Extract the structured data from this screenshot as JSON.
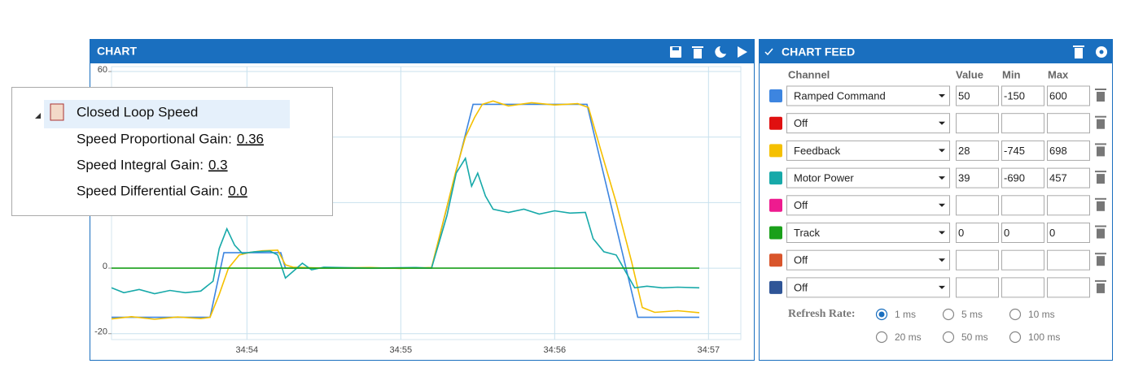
{
  "chart_panel": {
    "title": "CHART"
  },
  "chart_data": {
    "type": "line",
    "xlim": [
      2093.12,
      2097.21
    ],
    "ylim": [
      -21.8,
      61.5
    ],
    "xticks": [
      {
        "value": 2094,
        "label": "34:54"
      },
      {
        "value": 2095,
        "label": "34:55"
      },
      {
        "value": 2096,
        "label": "34:56"
      },
      {
        "value": 2097,
        "label": "34:57"
      }
    ],
    "yticks": [
      -20,
      0,
      60
    ],
    "ygrid": [
      -20,
      0,
      20,
      40,
      60
    ],
    "series": [
      {
        "name": "Ramped Command",
        "color": "#3d85e0",
        "x": [
          2093.12,
          2093.76,
          2093.85,
          2094.22,
          2094.25,
          2095.2,
          2095.47,
          2096.21,
          2096.54,
          2096.94
        ],
        "values": [
          -15,
          -15,
          4.7,
          4.7,
          0,
          0,
          50,
          50,
          -15,
          -15
        ]
      },
      {
        "name": "Feedback",
        "color": "#f5c000",
        "x": [
          2093.12,
          2093.25,
          2093.4,
          2093.55,
          2093.7,
          2093.76,
          2093.82,
          2093.88,
          2093.95,
          2094.02,
          2094.1,
          2094.2,
          2094.25,
          2094.3,
          2094.5,
          2094.8,
          2095.0,
          2095.2,
          2095.28,
          2095.36,
          2095.42,
          2095.48,
          2095.53,
          2095.6,
          2095.7,
          2095.85,
          2096.0,
          2096.15,
          2096.22,
          2096.3,
          2096.4,
          2096.5,
          2096.57,
          2096.65,
          2096.8,
          2096.94
        ],
        "values": [
          -15.5,
          -14.8,
          -15.6,
          -14.9,
          -15.4,
          -15,
          -8,
          0,
          4,
          4.8,
          5.3,
          5.5,
          1,
          0.3,
          0,
          0.2,
          -0.1,
          0.2,
          15,
          30,
          40,
          46,
          50,
          51,
          49.5,
          50.5,
          49.8,
          50.2,
          49,
          36,
          20,
          2,
          -12,
          -13.5,
          -13,
          -13.6
        ]
      },
      {
        "name": "Motor Power",
        "color": "#17a9a9",
        "x": [
          2093.12,
          2093.2,
          2093.3,
          2093.4,
          2093.5,
          2093.6,
          2093.7,
          2093.78,
          2093.82,
          2093.87,
          2093.92,
          2093.97,
          2094.05,
          2094.15,
          2094.2,
          2094.25,
          2094.3,
          2094.36,
          2094.42,
          2094.5,
          2094.8,
          2095.1,
          2095.2,
          2095.3,
          2095.36,
          2095.42,
          2095.46,
          2095.5,
          2095.55,
          2095.6,
          2095.7,
          2095.8,
          2095.9,
          2096.0,
          2096.1,
          2096.2,
          2096.25,
          2096.32,
          2096.4,
          2096.46,
          2096.52,
          2096.6,
          2096.7,
          2096.8,
          2096.94
        ],
        "values": [
          -6,
          -7.5,
          -6.5,
          -7.8,
          -6.8,
          -7.5,
          -7,
          -4,
          6,
          12,
          7,
          4.5,
          5,
          5.2,
          4,
          -3,
          -1,
          1.5,
          -0.5,
          0.3,
          0,
          0.2,
          0,
          16,
          29,
          33.5,
          25,
          29,
          22,
          18,
          17,
          18,
          16.5,
          17.5,
          16.8,
          17,
          9,
          5,
          4,
          -1,
          -6,
          -5.5,
          -6,
          -5.8,
          -6
        ]
      },
      {
        "name": "Track",
        "color": "#1aa01a",
        "x": [
          2093.12,
          2096.94
        ],
        "values": [
          0,
          0
        ]
      }
    ]
  },
  "tooltip": {
    "title": "Closed Loop Speed",
    "params": [
      {
        "label": "Speed Proportional Gain:",
        "value": "0.36"
      },
      {
        "label": "Speed Integral Gain:",
        "value": "0.3"
      },
      {
        "label": "Speed Differential Gain:",
        "value": "0.0"
      }
    ]
  },
  "feed": {
    "title": "CHART FEED",
    "columns": [
      "Channel",
      "Value",
      "Min",
      "Max"
    ],
    "rows": [
      {
        "color": "#3d85e0",
        "channel": "Ramped Command",
        "value": 50,
        "min": -150,
        "max": 600
      },
      {
        "color": "#e01010",
        "channel": "Off",
        "value": null,
        "min": null,
        "max": null
      },
      {
        "color": "#f5c000",
        "channel": "Feedback",
        "value": 28,
        "min": -745,
        "max": 698
      },
      {
        "color": "#17a9a9",
        "channel": "Motor Power",
        "value": 39,
        "min": -690,
        "max": 457
      },
      {
        "color": "#ee1b8f",
        "channel": "Off",
        "value": null,
        "min": null,
        "max": null
      },
      {
        "color": "#1aa01a",
        "channel": "Track",
        "value": 0,
        "min": 0,
        "max": 0
      },
      {
        "color": "#d9552b",
        "channel": "Off",
        "value": null,
        "min": null,
        "max": null
      },
      {
        "color": "#2f5597",
        "channel": "Off",
        "value": null,
        "min": null,
        "max": null
      }
    ],
    "refresh": {
      "label": "Refresh Rate:",
      "options": [
        "1 ms",
        "5 ms",
        "10 ms",
        "20 ms",
        "50 ms",
        "100 ms"
      ],
      "selected": 0
    }
  }
}
